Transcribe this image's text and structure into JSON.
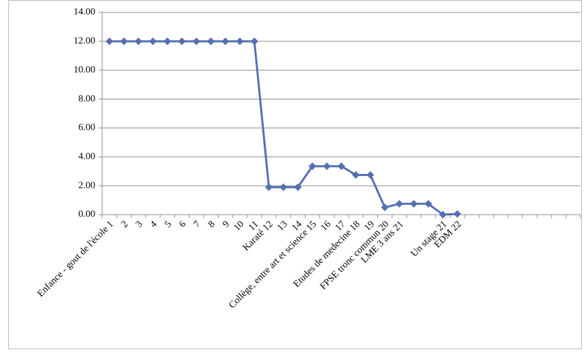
{
  "chart_data": {
    "type": "line",
    "categories": [
      "Enfance - gout de l'école 1",
      "2",
      "3",
      "4",
      "5",
      "6",
      "7",
      "8",
      "9",
      "10",
      "11",
      "Karaté 12",
      "13",
      "14",
      "Collège, entre art et science 15",
      "16",
      "17",
      "Etudes de medecine 18",
      "19",
      "FPSE tronc commun 20",
      "LME 3 ans 21",
      null,
      null,
      "Un stage 21",
      "EDM 22",
      null,
      null,
      null,
      null,
      null,
      null,
      null,
      null
    ],
    "series": [
      {
        "name": null,
        "color": "#5470b0",
        "values": [
          12,
          12,
          12,
          12,
          12,
          12,
          12,
          12,
          12,
          12,
          12,
          1.9,
          1.9,
          1.9,
          3.35,
          3.35,
          3.35,
          2.75,
          2.75,
          0.5,
          0.75,
          0.75,
          0.75,
          0,
          0.05,
          null,
          null,
          null,
          null,
          null,
          null,
          null,
          null
        ]
      }
    ],
    "ylim": [
      0,
      14
    ],
    "yticks": [
      {
        "value": 0,
        "label": "0.00"
      },
      {
        "value": 2,
        "label": "2.00"
      },
      {
        "value": 4,
        "label": "4.00"
      },
      {
        "value": 6,
        "label": "6.00"
      },
      {
        "value": 8,
        "label": "8.00"
      },
      {
        "value": 10,
        "label": "10.00"
      },
      {
        "value": 12,
        "label": "12.00"
      },
      {
        "value": 14,
        "label": "14.00"
      }
    ],
    "grid": true
  }
}
